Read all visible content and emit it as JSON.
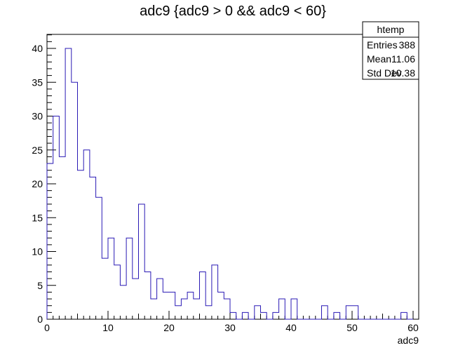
{
  "chart_data": {
    "type": "histogram",
    "title": "adc9 {adc9 > 0 && adc9 < 60}",
    "xlabel": "adc9",
    "ylabel": "",
    "xlim": [
      0,
      60
    ],
    "ylim": [
      0,
      42
    ],
    "bin_width": 1,
    "bin_edges_start": 0,
    "x_ticks": [
      0,
      10,
      20,
      30,
      40,
      50,
      60
    ],
    "y_ticks": [
      0,
      5,
      10,
      15,
      20,
      25,
      30,
      35,
      40
    ],
    "counts": [
      23,
      30,
      24,
      40,
      35,
      22,
      25,
      21,
      18,
      9,
      12,
      8,
      5,
      12,
      6,
      17,
      7,
      3,
      6,
      4,
      4,
      2,
      3,
      4,
      3,
      7,
      2,
      8,
      4,
      3,
      1,
      0,
      1,
      0,
      2,
      1,
      0,
      1,
      3,
      0,
      3,
      0,
      0,
      0,
      0,
      2,
      0,
      1,
      0,
      2,
      2,
      0,
      0,
      0,
      0,
      0,
      0,
      0,
      1,
      0
    ],
    "line_color": "#2a1ab5",
    "grid": false,
    "stats": {
      "name": "htemp",
      "rows": [
        {
          "label": "Entries",
          "value": "388"
        },
        {
          "label": "Mean",
          "value": "11.06"
        },
        {
          "label": "Std Dev",
          "value": "10.38"
        }
      ]
    }
  }
}
